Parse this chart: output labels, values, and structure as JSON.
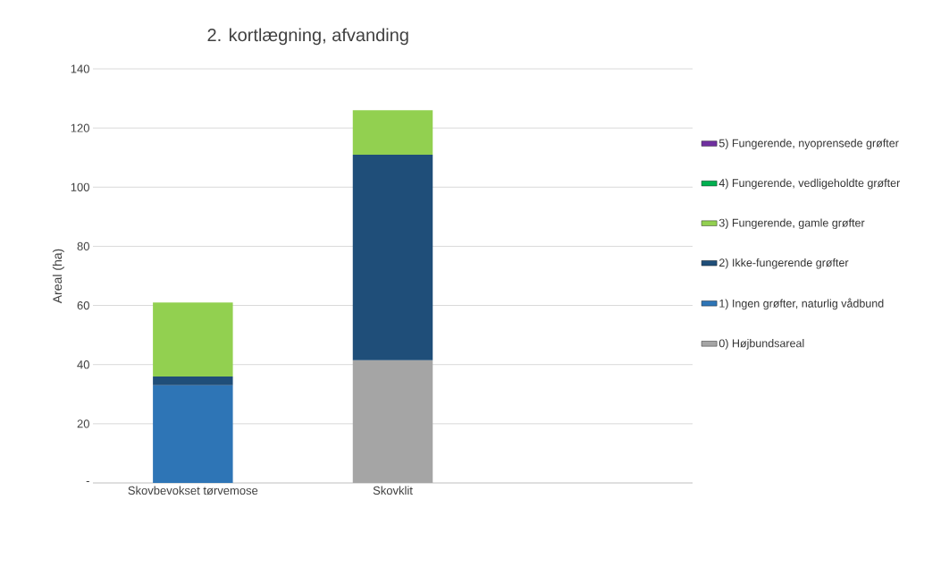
{
  "chart_data": {
    "type": "bar",
    "stacked": true,
    "title": "2. kortlægning, afvanding",
    "ylabel": "Areal (ha)",
    "categories": [
      "Skovbevokset tørvemose",
      "Skovklit",
      null
    ],
    "series": [
      {
        "name": "0) Højbundsareal",
        "color": "#a5a5a5",
        "values": [
          null,
          41.5,
          null
        ]
      },
      {
        "name": "1) Ingen grøfter, naturlig vådbund",
        "color": "#2e75b6",
        "values": [
          33,
          null,
          null
        ]
      },
      {
        "name": "2) Ikke-fungerende grøfter",
        "color": "#1f4e79",
        "values": [
          3,
          69.5,
          null
        ]
      },
      {
        "name": "3) Fungerende, gamle grøfter",
        "color": "#92d050",
        "values": [
          25,
          15,
          null
        ]
      },
      {
        "name": "4) Fungerende, vedligeholdte grøfter",
        "color": "#00b050",
        "values": [
          null,
          null,
          null
        ]
      },
      {
        "name": "5) Fungerende, nyoprensede grøfter",
        "color": "#7030a0",
        "values": [
          null,
          null,
          null
        ]
      }
    ],
    "ylim": [
      0,
      140
    ],
    "yticks": [
      {
        "value": 0,
        "label": "-"
      },
      20,
      40,
      60,
      80,
      100,
      120,
      140
    ],
    "grid": "y",
    "legend": "right"
  }
}
